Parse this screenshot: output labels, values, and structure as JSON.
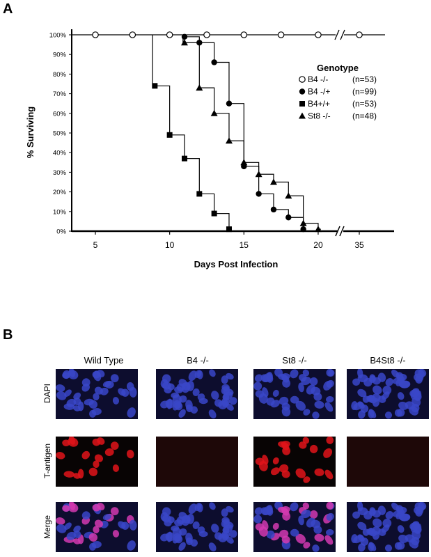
{
  "panels": {
    "a": "A",
    "b": "B"
  },
  "chart_data": {
    "type": "line",
    "subtype": "step (Kaplan-Meier survival)",
    "title": "",
    "xlabel": "Days Post Infection",
    "ylabel": "% Surviving",
    "x_ticks": [
      "5",
      "10",
      "15",
      "20",
      "35"
    ],
    "y_ticks": [
      "0%",
      "10%",
      "20%",
      "30%",
      "40%",
      "50%",
      "60%",
      "70%",
      "80%",
      "90%",
      "100%"
    ],
    "xlim": [
      3,
      36
    ],
    "ylim": [
      0,
      100
    ],
    "x_axis_break": "between 20 and 35",
    "legend_title": "Genotype",
    "legend_position": "right",
    "grid": false,
    "series": [
      {
        "name": "B4 -/-",
        "n": "(n=53)",
        "marker": "open-circle",
        "x": [
          5,
          7.5,
          10,
          12.5,
          15,
          17.5,
          20,
          35
        ],
        "y": [
          100,
          100,
          100,
          100,
          100,
          100,
          100,
          100
        ]
      },
      {
        "name": "B4 -/+",
        "n": "(n=99)",
        "marker": "filled-circle",
        "x": [
          11,
          12,
          13,
          14,
          15,
          16,
          17,
          18,
          19
        ],
        "y": [
          99,
          96,
          86,
          65,
          33,
          19,
          11,
          7,
          1
        ]
      },
      {
        "name": "B4+/+",
        "n": "(n=53)",
        "marker": "filled-square",
        "x": [
          9,
          10,
          11,
          12,
          13,
          14
        ],
        "y": [
          74,
          49,
          37,
          19,
          9,
          1
        ]
      },
      {
        "name": "St8 -/-",
        "n": "(n=48)",
        "marker": "filled-triangle",
        "x": [
          11,
          12,
          13,
          14,
          15,
          16,
          17,
          18,
          19,
          20
        ],
        "y": [
          96,
          73,
          60,
          46,
          35,
          29,
          25,
          18,
          4,
          1
        ]
      }
    ]
  },
  "micrographs": {
    "columns": [
      "Wild Type",
      "B4 -/-",
      "St8 -/-",
      "B4St8 -/-"
    ],
    "rows": [
      "DAPI",
      "T-antigen",
      "Merge"
    ],
    "colors": {
      "dapi": "#3a46c8",
      "tantigen": "#e0141a",
      "merge": "#d43ab0",
      "background": "#101020"
    }
  }
}
